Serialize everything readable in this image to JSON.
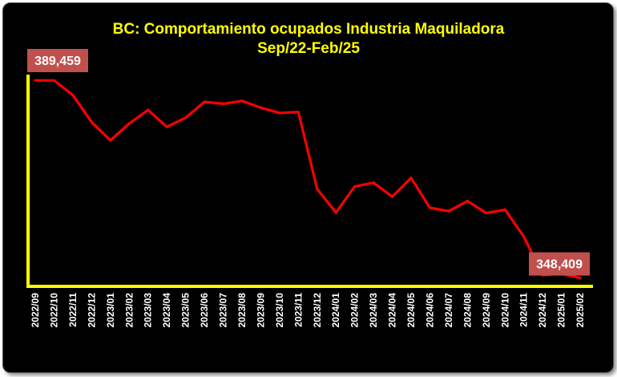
{
  "chart_data": {
    "type": "line",
    "title": "BC: Comportamiento ocupados Industria Maquiladora",
    "subtitle": "Sep/22-Feb/25",
    "xlabel": "",
    "ylabel": "",
    "grid": false,
    "ylim": [
      348000,
      390000
    ],
    "categories": [
      "2022/09",
      "2022/10",
      "2022/11",
      "2022/12",
      "2023/01",
      "2023/02",
      "2023/03",
      "2023/04",
      "2023/05",
      "2023/06",
      "2023/07",
      "2023/08",
      "2023/09",
      "2023/10",
      "2023/11",
      "2023/12",
      "2024/01",
      "2024/02",
      "2024/03",
      "2024/04",
      "2024/05",
      "2024/06",
      "2024/07",
      "2024/08",
      "2024/09",
      "2024/10",
      "2024/11",
      "2024/12",
      "2025/01",
      "2025/02"
    ],
    "series": [
      {
        "color": "#ff0000",
        "values": [
          389459,
          389450,
          386400,
          380800,
          377000,
          380500,
          383300,
          379800,
          381700,
          385000,
          384600,
          385200,
          383800,
          382700,
          382900,
          366900,
          362000,
          367400,
          368200,
          365300,
          369200,
          363000,
          362300,
          364400,
          361900,
          362600,
          357000,
          349000,
          349300,
          348409
        ]
      }
    ],
    "annotations": [
      {
        "index": 0,
        "text": "389,459",
        "color": "#c0504d"
      },
      {
        "index": 29,
        "text": "348,409",
        "color": "#c0504d"
      }
    ],
    "axis_color": "#ffff00"
  }
}
